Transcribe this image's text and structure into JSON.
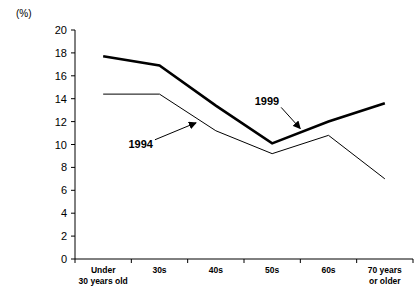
{
  "chart_data": {
    "type": "line",
    "y_label": "(%)",
    "categories": [
      "Under\n30 years old",
      "30s",
      "40s",
      "50s",
      "60s",
      "70 years\nor older"
    ],
    "series": [
      {
        "name": "1999",
        "color": "#000000",
        "line_style": "solid",
        "values": [
          17.7,
          16.9,
          13.4,
          10.1,
          12.0,
          13.6
        ]
      },
      {
        "name": "1994",
        "color": "#000000",
        "line_style": "solid",
        "values": [
          14.4,
          14.4,
          11.2,
          9.2,
          10.8,
          7.0
        ]
      }
    ],
    "ylim": [
      0,
      20
    ],
    "yticks": [
      0,
      2,
      4,
      6,
      8,
      10,
      12,
      14,
      16,
      18,
      20
    ],
    "grid": false
  }
}
